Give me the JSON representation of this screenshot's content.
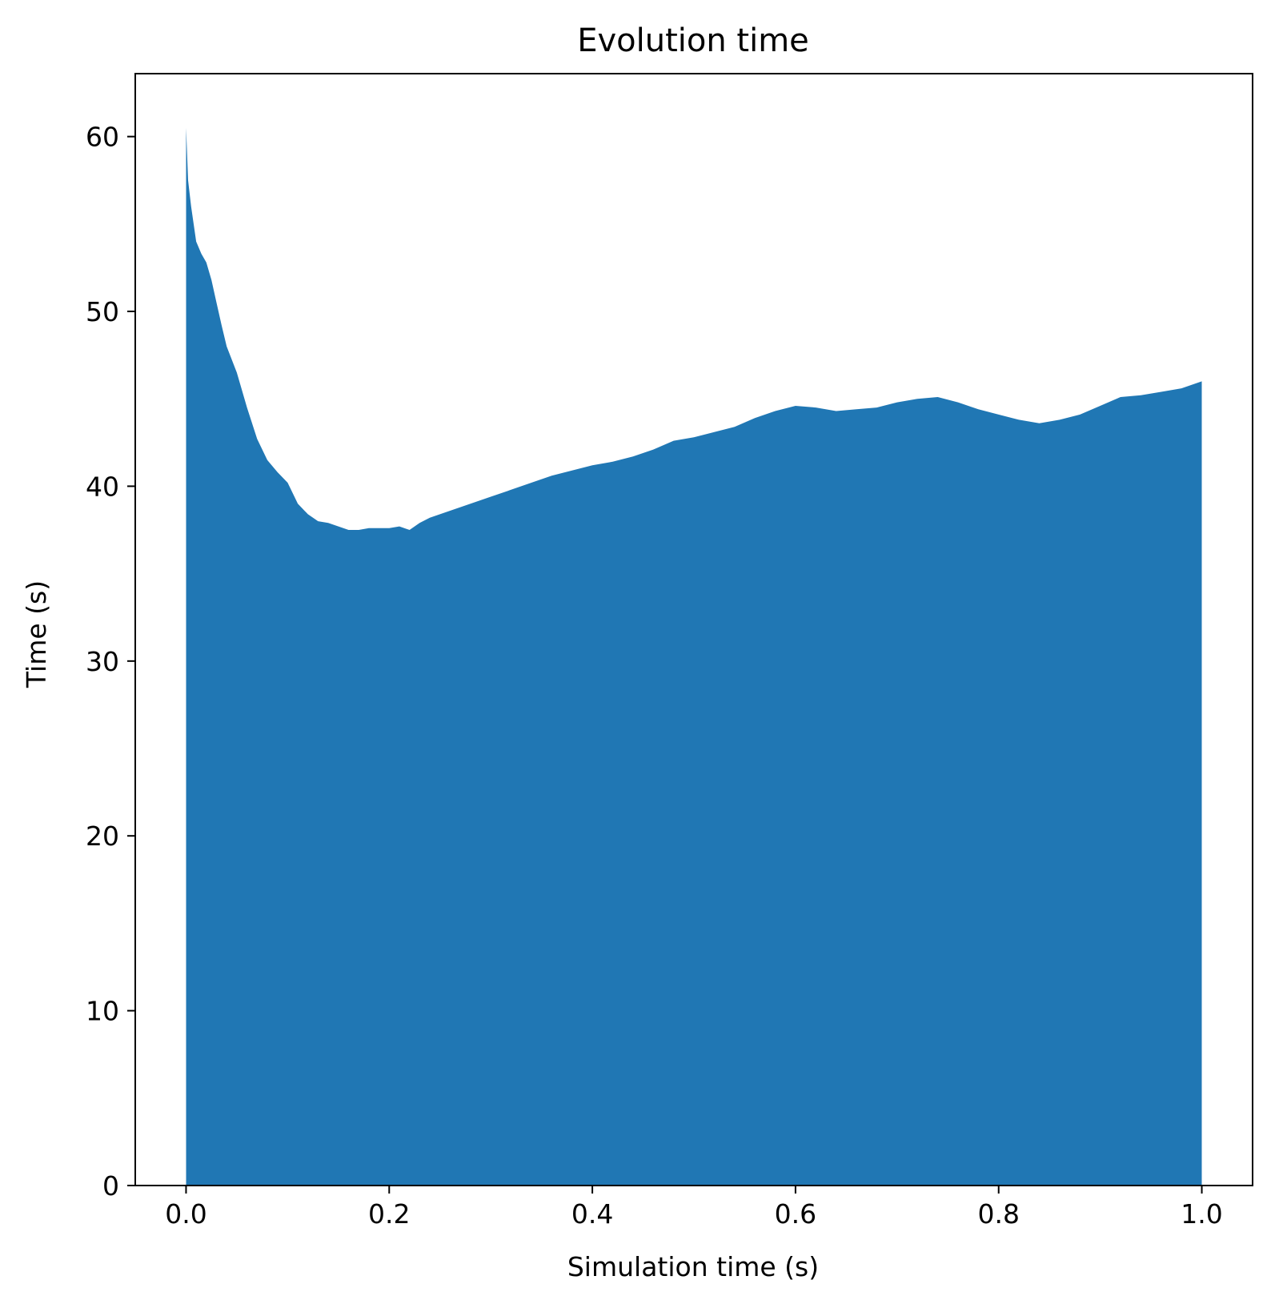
{
  "chart_data": {
    "type": "area",
    "title": "Evolution time",
    "xlabel": "Simulation time (s)",
    "ylabel": "Time (s)",
    "xlim": [
      -0.05,
      1.05
    ],
    "ylim": [
      0,
      63.6
    ],
    "xticks": [
      0.0,
      0.2,
      0.4,
      0.6,
      0.8,
      1.0
    ],
    "xtick_labels": [
      "0.0",
      "0.2",
      "0.4",
      "0.6",
      "0.8",
      "1.0"
    ],
    "yticks": [
      0,
      10,
      20,
      30,
      40,
      50,
      60
    ],
    "ytick_labels": [
      "0",
      "10",
      "20",
      "30",
      "40",
      "50",
      "60"
    ],
    "grid": false,
    "legend": "none",
    "color": "#2077b4",
    "series": [
      {
        "x": [
          0.0,
          0.002,
          0.005,
          0.01,
          0.015,
          0.02,
          0.025,
          0.03,
          0.035,
          0.04,
          0.05,
          0.06,
          0.07,
          0.08,
          0.09,
          0.1,
          0.11,
          0.12,
          0.13,
          0.14,
          0.15,
          0.16,
          0.17,
          0.18,
          0.19,
          0.2,
          0.21,
          0.22,
          0.23,
          0.24,
          0.25,
          0.26,
          0.27,
          0.28,
          0.29,
          0.3,
          0.32,
          0.34,
          0.36,
          0.38,
          0.4,
          0.42,
          0.44,
          0.46,
          0.48,
          0.5,
          0.52,
          0.54,
          0.56,
          0.58,
          0.6,
          0.62,
          0.64,
          0.66,
          0.68,
          0.7,
          0.72,
          0.74,
          0.76,
          0.78,
          0.8,
          0.82,
          0.84,
          0.86,
          0.88,
          0.9,
          0.92,
          0.94,
          0.96,
          0.98,
          1.0
        ],
        "values": [
          60.5,
          57.5,
          56.0,
          54.0,
          53.3,
          52.8,
          51.8,
          50.5,
          49.2,
          48.0,
          46.5,
          44.5,
          42.7,
          41.5,
          40.8,
          40.2,
          39.0,
          38.4,
          38.0,
          37.9,
          37.7,
          37.5,
          37.5,
          37.6,
          37.6,
          37.6,
          37.7,
          37.5,
          37.9,
          38.2,
          38.4,
          38.6,
          38.8,
          39.0,
          39.2,
          39.4,
          39.8,
          40.2,
          40.6,
          40.9,
          41.2,
          41.4,
          41.7,
          42.1,
          42.6,
          42.8,
          43.1,
          43.4,
          43.9,
          44.3,
          44.6,
          44.5,
          44.3,
          44.4,
          44.5,
          44.8,
          45.0,
          45.1,
          44.8,
          44.4,
          44.1,
          43.8,
          43.6,
          43.8,
          44.1,
          44.6,
          45.1,
          45.2,
          45.4,
          45.6,
          46.0
        ]
      }
    ]
  }
}
